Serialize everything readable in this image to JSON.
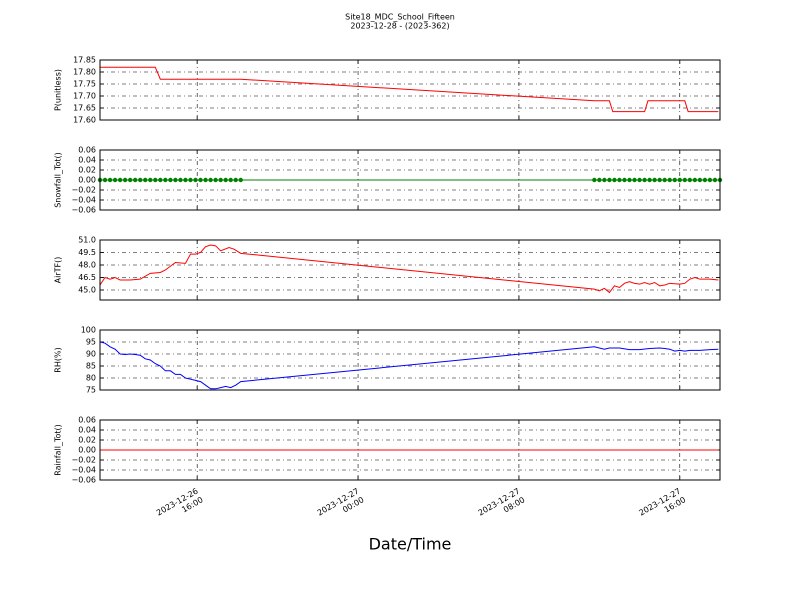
{
  "title": "Site18_MDC_School_Fifteen",
  "subtitle": "2023-12-28 - (2023-362)",
  "xlabel": "Date/Time",
  "xlim": [
    "2023-12-26 11:10",
    "2023-12-27 18:00"
  ],
  "xticks": [
    "2023-12-26 16:00",
    "2023-12-27 00:00",
    "2023-12-27 08:00",
    "2023-12-27 16:00"
  ],
  "chart_data": [
    {
      "type": "line",
      "ylabel": "P(unitless)",
      "color": "#ff0000",
      "grid": true,
      "ylim": [
        17.6,
        17.85
      ],
      "yticks": [
        {
          "value": 17.6,
          "label": "17.60"
        },
        17.65,
        {
          "value": 17.7,
          "label": "17.70"
        },
        17.75,
        {
          "value": 17.8,
          "label": "17.80"
        },
        17.85
      ],
      "x": [
        "2023-12-26 11:10",
        "2023-12-26 13:55",
        "2023-12-26 14:10",
        "2023-12-26 18:10",
        "2023-12-27 11:45",
        "2023-12-27 12:30",
        "2023-12-27 12:40",
        "2023-12-27 14:15",
        "2023-12-27 14:25",
        "2023-12-27 16:15",
        "2023-12-27 16:25",
        "2023-12-27 17:55"
      ],
      "values": [
        17.82,
        17.82,
        17.77,
        17.77,
        17.68,
        17.68,
        17.635,
        17.635,
        17.68,
        17.68,
        17.635,
        17.635
      ]
    },
    {
      "type": "line",
      "ylabel": "Snowfall_Tot()",
      "color": "#008000",
      "markers": true,
      "grid": true,
      "ylim": [
        -0.06,
        0.06
      ],
      "yticks": [
        {
          "value": -0.06,
          "label": "−0.06"
        },
        {
          "value": -0.04,
          "label": "−0.04"
        },
        {
          "value": -0.02,
          "label": "−0.02"
        },
        {
          "value": 0,
          "label": "0.00"
        },
        0.02,
        0.04,
        0.06
      ],
      "x": [
        "2023-12-26 11:10",
        "2023-12-26 11:25",
        "2023-12-26 11:40",
        "2023-12-26 11:55",
        "2023-12-26 12:10",
        "2023-12-26 12:25",
        "2023-12-26 12:40",
        "2023-12-26 12:55",
        "2023-12-26 13:10",
        "2023-12-26 13:25",
        "2023-12-26 13:40",
        "2023-12-26 13:55",
        "2023-12-26 14:10",
        "2023-12-26 14:25",
        "2023-12-26 14:40",
        "2023-12-26 14:55",
        "2023-12-26 15:10",
        "2023-12-26 15:25",
        "2023-12-26 15:40",
        "2023-12-26 15:55",
        "2023-12-26 16:10",
        "2023-12-26 16:25",
        "2023-12-26 16:40",
        "2023-12-26 16:55",
        "2023-12-26 17:10",
        "2023-12-26 17:25",
        "2023-12-26 17:40",
        "2023-12-26 17:55",
        "2023-12-26 18:10",
        "2023-12-27 11:45",
        "2023-12-27 12:00",
        "2023-12-27 12:15",
        "2023-12-27 12:30",
        "2023-12-27 12:45",
        "2023-12-27 13:00",
        "2023-12-27 13:15",
        "2023-12-27 13:30",
        "2023-12-27 13:45",
        "2023-12-27 14:00",
        "2023-12-27 14:15",
        "2023-12-27 14:30",
        "2023-12-27 14:45",
        "2023-12-27 15:00",
        "2023-12-27 15:15",
        "2023-12-27 15:30",
        "2023-12-27 15:45",
        "2023-12-27 16:00",
        "2023-12-27 16:15",
        "2023-12-27 16:30",
        "2023-12-27 16:45",
        "2023-12-27 17:00",
        "2023-12-27 17:15",
        "2023-12-27 17:30",
        "2023-12-27 17:45",
        "2023-12-27 18:00"
      ],
      "values": [
        0,
        0,
        0,
        0,
        0,
        0,
        0,
        0,
        0,
        0,
        0,
        0,
        0,
        0,
        0,
        0,
        0,
        0,
        0,
        0,
        0,
        0,
        0,
        0,
        0,
        0,
        0,
        0,
        0,
        0,
        0,
        0,
        0,
        0,
        0,
        0,
        0,
        0,
        0,
        0,
        0,
        0,
        0,
        0,
        0,
        0,
        0,
        0,
        0,
        0,
        0,
        0,
        0,
        0,
        0
      ]
    },
    {
      "type": "line",
      "ylabel": "AirTF()",
      "color": "#ff0000",
      "grid": true,
      "ylim": [
        43.8,
        51.0
      ],
      "yticks": [
        {
          "value": 45,
          "label": "45.0"
        },
        46.5,
        {
          "value": 48,
          "label": "48.0"
        },
        49.5,
        {
          "value": 51,
          "label": "51.0"
        }
      ],
      "x": [
        "2023-12-26 11:10",
        "2023-12-26 11:25",
        "2023-12-26 11:40",
        "2023-12-26 11:55",
        "2023-12-26 12:10",
        "2023-12-26 12:40",
        "2023-12-26 13:10",
        "2023-12-26 13:40",
        "2023-12-26 14:10",
        "2023-12-26 14:25",
        "2023-12-26 14:55",
        "2023-12-26 15:25",
        "2023-12-26 15:40",
        "2023-12-26 15:55",
        "2023-12-26 16:10",
        "2023-12-26 16:25",
        "2023-12-26 16:40",
        "2023-12-26 16:55",
        "2023-12-26 17:10",
        "2023-12-26 17:35",
        "2023-12-26 17:50",
        "2023-12-26 18:10",
        "2023-12-27 11:45",
        "2023-12-27 12:00",
        "2023-12-27 12:15",
        "2023-12-27 12:30",
        "2023-12-27 12:45",
        "2023-12-27 13:00",
        "2023-12-27 13:15",
        "2023-12-27 13:30",
        "2023-12-27 13:45",
        "2023-12-27 14:00",
        "2023-12-27 14:15",
        "2023-12-27 14:30",
        "2023-12-27 14:45",
        "2023-12-27 15:00",
        "2023-12-27 15:15",
        "2023-12-27 15:30",
        "2023-12-27 16:00",
        "2023-12-27 16:15",
        "2023-12-27 16:30",
        "2023-12-27 16:45",
        "2023-12-27 17:00",
        "2023-12-27 17:30",
        "2023-12-27 17:55"
      ],
      "values": [
        45.6,
        46.5,
        46.3,
        46.5,
        46.2,
        46.2,
        46.3,
        47.0,
        47.1,
        47.4,
        48.3,
        48.2,
        49.3,
        49.3,
        49.5,
        50.2,
        50.4,
        50.3,
        49.7,
        50.1,
        49.9,
        49.4,
        45.1,
        44.9,
        45.2,
        44.7,
        45.5,
        45.3,
        45.8,
        46.0,
        45.8,
        45.7,
        45.9,
        45.7,
        45.9,
        45.5,
        45.6,
        45.8,
        45.7,
        45.8,
        46.3,
        46.5,
        46.3,
        46.3,
        46.2
      ]
    },
    {
      "type": "line",
      "ylabel": "RH(%)",
      "color": "#0000ff",
      "grid": true,
      "ylim": [
        75,
        100
      ],
      "yticks": [
        75,
        80,
        85,
        90,
        95,
        100
      ],
      "x": [
        "2023-12-26 11:10",
        "2023-12-26 11:25",
        "2023-12-26 11:40",
        "2023-12-26 11:55",
        "2023-12-26 12:10",
        "2023-12-26 12:25",
        "2023-12-26 12:40",
        "2023-12-26 12:55",
        "2023-12-26 13:10",
        "2023-12-26 13:25",
        "2023-12-26 13:40",
        "2023-12-26 13:55",
        "2023-12-26 14:10",
        "2023-12-26 14:25",
        "2023-12-26 14:40",
        "2023-12-26 14:55",
        "2023-12-26 15:10",
        "2023-12-26 15:25",
        "2023-12-26 15:40",
        "2023-12-26 15:55",
        "2023-12-26 16:10",
        "2023-12-26 16:25",
        "2023-12-26 16:40",
        "2023-12-26 16:55",
        "2023-12-26 17:10",
        "2023-12-26 17:25",
        "2023-12-26 17:40",
        "2023-12-26 17:55",
        "2023-12-26 18:10",
        "2023-12-27 11:45",
        "2023-12-27 12:00",
        "2023-12-27 12:15",
        "2023-12-27 12:30",
        "2023-12-27 13:00",
        "2023-12-27 13:30",
        "2023-12-27 14:00",
        "2023-12-27 14:30",
        "2023-12-27 15:00",
        "2023-12-27 15:15",
        "2023-12-27 15:30",
        "2023-12-27 15:45",
        "2023-12-27 16:00",
        "2023-12-27 16:15",
        "2023-12-27 16:30",
        "2023-12-27 17:00",
        "2023-12-27 17:30",
        "2023-12-27 17:55"
      ],
      "values": [
        95,
        94.5,
        93,
        92,
        90,
        89.8,
        90,
        89.8,
        89.5,
        88,
        87.5,
        86,
        85,
        83,
        83,
        81.5,
        81.5,
        80,
        79.5,
        79,
        78.5,
        77,
        75.5,
        75.5,
        76,
        76.5,
        76,
        77,
        78.5,
        93,
        92.5,
        92,
        92.5,
        92.5,
        91.8,
        91.8,
        92.3,
        92.5,
        92.3,
        92,
        91.2,
        91.5,
        91.2,
        91.5,
        91.5,
        91.8,
        92
      ]
    },
    {
      "type": "line",
      "ylabel": "Rainfall_Tot()",
      "color": "#ff0000",
      "grid": true,
      "ylim": [
        -0.06,
        0.06
      ],
      "yticks": [
        {
          "value": -0.06,
          "label": "−0.06"
        },
        {
          "value": -0.04,
          "label": "−0.04"
        },
        {
          "value": -0.02,
          "label": "−0.02"
        },
        {
          "value": 0,
          "label": "0.00"
        },
        0.02,
        0.04,
        0.06
      ],
      "x": [
        "2023-12-26 11:10",
        "2023-12-26 18:10",
        "2023-12-27 11:45",
        "2023-12-27 17:55"
      ],
      "values": [
        0,
        0,
        0,
        0
      ]
    }
  ]
}
